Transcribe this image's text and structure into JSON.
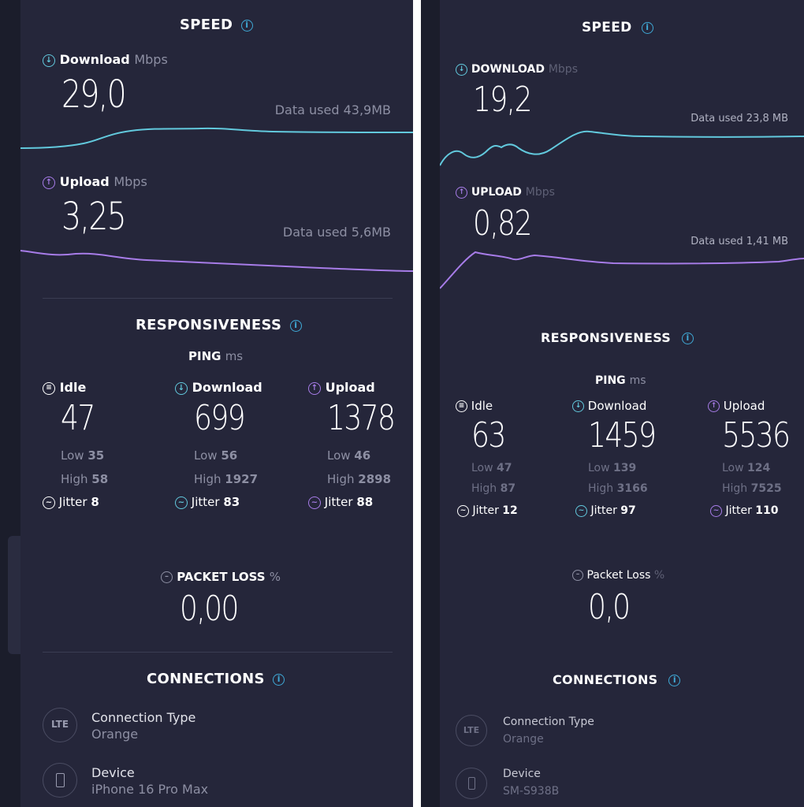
{
  "left": {
    "speed": {
      "title": "SPEED",
      "download": {
        "label": "Download",
        "unit": "Mbps",
        "value": "29,0",
        "data_used": "Data used 43,9MB"
      },
      "upload": {
        "label": "Upload",
        "unit": "Mbps",
        "value": "3,25",
        "data_used": "Data used 5,6MB"
      }
    },
    "responsiveness": {
      "title": "RESPONSIVENESS",
      "ping_label": "PING",
      "ping_unit": "ms",
      "columns": [
        {
          "label": "Idle",
          "value": "47",
          "low_label": "Low",
          "low": "35",
          "high_label": "High",
          "high": "58",
          "jitter_label": "Jitter",
          "jitter": "8"
        },
        {
          "label": "Download",
          "value": "699",
          "low_label": "Low",
          "low": "56",
          "high_label": "High",
          "high": "1927",
          "jitter_label": "Jitter",
          "jitter": "83"
        },
        {
          "label": "Upload",
          "value": "1378",
          "low_label": "Low",
          "low": "46",
          "high_label": "High",
          "high": "2898",
          "jitter_label": "Jitter",
          "jitter": "88"
        }
      ]
    },
    "packet_loss": {
      "label": "PACKET LOSS",
      "unit": "%",
      "value": "0,00"
    },
    "connections": {
      "title": "CONNECTIONS",
      "type_badge": "LTE",
      "type_label": "Connection Type",
      "type_value": "Orange",
      "device_label": "Device",
      "device_value": "iPhone 16 Pro Max"
    }
  },
  "right": {
    "speed": {
      "title": "SPEED",
      "download": {
        "label": "DOWNLOAD",
        "unit": "Mbps",
        "value": "19,2",
        "data_used": "Data used 23,8 MB"
      },
      "upload": {
        "label": "UPLOAD",
        "unit": "Mbps",
        "value": "0,82",
        "data_used": "Data used 1,41 MB"
      }
    },
    "responsiveness": {
      "title": "RESPONSIVENESS",
      "ping_label": "PING",
      "ping_unit": "ms",
      "columns": [
        {
          "label": "Idle",
          "value": "63",
          "low_label": "Low",
          "low": "47",
          "high_label": "High",
          "high": "87",
          "jitter_label": "Jitter",
          "jitter": "12"
        },
        {
          "label": "Download",
          "value": "1459",
          "low_label": "Low",
          "low": "139",
          "high_label": "High",
          "high": "3166",
          "jitter_label": "Jitter",
          "jitter": "97"
        },
        {
          "label": "Upload",
          "value": "5536",
          "low_label": "Low",
          "low": "124",
          "high_label": "High",
          "high": "7525",
          "jitter_label": "Jitter",
          "jitter": "110"
        }
      ]
    },
    "packet_loss": {
      "label": "Packet Loss",
      "unit": "%",
      "value": "0,0"
    },
    "connections": {
      "title": "CONNECTIONS",
      "type_badge": "LTE",
      "type_label": "Connection Type",
      "type_value": "Orange",
      "device_label": "Device",
      "device_value": "SM-S938B"
    }
  },
  "colors": {
    "panel": "#25263a",
    "download": "#62c9dd",
    "upload": "#a77ce8",
    "info": "#3fa9d6",
    "muted": "#8d8fa3"
  },
  "icons": {
    "info": "info-icon",
    "download": "arrow-down-circle-icon",
    "upload": "arrow-up-circle-icon",
    "idle": "idle-icon",
    "jitter": "jitter-icon",
    "packet_loss": "minus-circle-icon",
    "device": "phone-icon"
  }
}
